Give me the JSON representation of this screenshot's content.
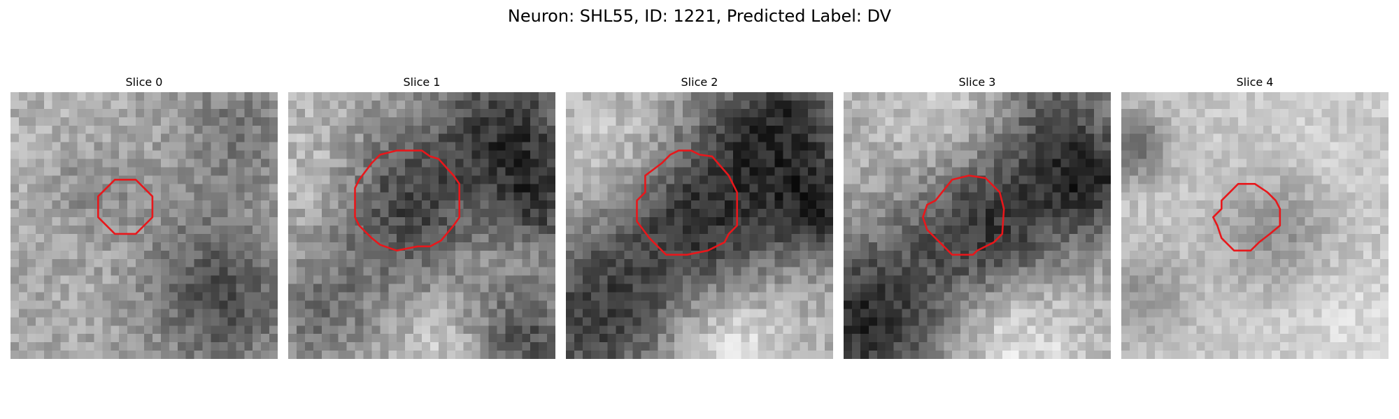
{
  "figure": {
    "title": "Neuron: SHL55, ID: 1221, Predicted Label: DV"
  },
  "colors": {
    "outline": "#e8171b",
    "background": "#ffffff"
  },
  "panels": [
    {
      "label": "Slice 0"
    },
    {
      "label": "Slice 1"
    },
    {
      "label": "Slice 2"
    },
    {
      "label": "Slice 3"
    },
    {
      "label": "Slice 4"
    }
  ]
}
